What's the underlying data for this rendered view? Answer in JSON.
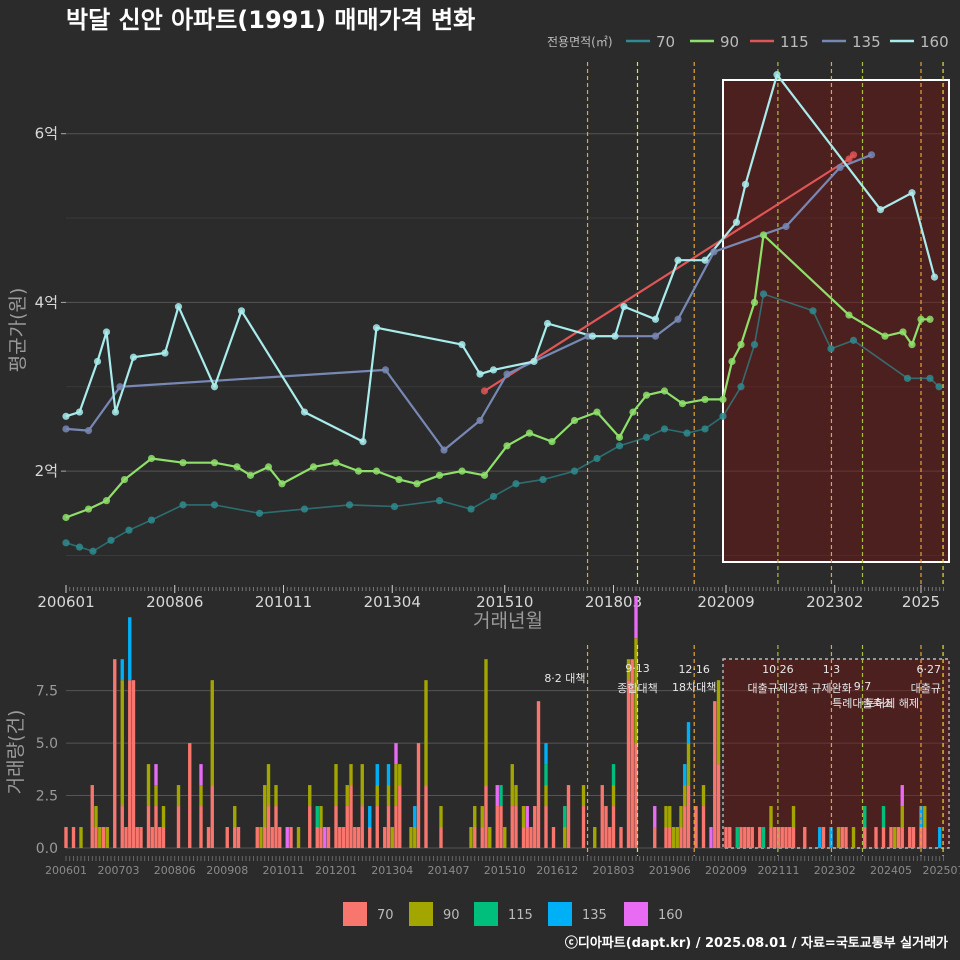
{
  "title": "박달 신안 아파트(1991) 매매가격 변화",
  "credit": "ⓒ디아파트(dapt.kr) / 2025.08.01 / 자료=국토교통부 실거래가",
  "colors": {
    "70": "#2e8b8f",
    "90": "#8ee06a",
    "115": "#e05555",
    "135": "#7888b4",
    "160": "#a8ecec",
    "bar70": "#f8766d",
    "bar90": "#a3a500",
    "bar115": "#00bf7d",
    "bar135": "#00b0f6",
    "bar160": "#e76bf3"
  },
  "chart_data": [
    {
      "type": "line",
      "ylabel": "평균가(원)",
      "xlabel": "거래년월",
      "x_ticks": [
        "200601",
        "200806",
        "201011",
        "201304",
        "201510",
        "201803",
        "202009",
        "202302",
        "2025"
      ],
      "y_ticks": [
        {
          "value": 2,
          "label": "2억"
        },
        {
          "value": 4,
          "label": "4억"
        },
        {
          "value": 6,
          "label": "6억"
        }
      ],
      "ylim": [
        0.65,
        6.85
      ],
      "legend_title": "전용면적(㎡)",
      "series": [
        {
          "name": "70",
          "values": [
            [
              2006.0,
              1.15
            ],
            [
              2006.3,
              1.1
            ],
            [
              2006.6,
              1.05
            ],
            [
              2007.0,
              1.18
            ],
            [
              2007.4,
              1.3
            ],
            [
              2007.9,
              1.42
            ],
            [
              2008.6,
              1.6
            ],
            [
              2009.3,
              1.6
            ],
            [
              2010.3,
              1.5
            ],
            [
              2011.3,
              1.55
            ],
            [
              2012.3,
              1.6
            ],
            [
              2013.3,
              1.58
            ],
            [
              2014.3,
              1.65
            ],
            [
              2015.0,
              1.55
            ],
            [
              2015.5,
              1.7
            ],
            [
              2016.0,
              1.85
            ],
            [
              2016.6,
              1.9
            ],
            [
              2017.3,
              2.0
            ],
            [
              2017.8,
              2.15
            ],
            [
              2018.3,
              2.3
            ],
            [
              2018.9,
              2.4
            ],
            [
              2019.3,
              2.5
            ],
            [
              2019.8,
              2.45
            ],
            [
              2020.2,
              2.5
            ],
            [
              2020.6,
              2.65
            ],
            [
              2021.0,
              3.0
            ],
            [
              2021.3,
              3.5
            ],
            [
              2021.5,
              4.1
            ],
            [
              2022.6,
              3.9
            ],
            [
              2023.0,
              3.45
            ],
            [
              2023.5,
              3.55
            ],
            [
              2024.7,
              3.1
            ],
            [
              2025.2,
              3.1
            ],
            [
              2025.4,
              3.0
            ]
          ]
        },
        {
          "name": "90",
          "values": [
            [
              2006.0,
              1.45
            ],
            [
              2006.5,
              1.55
            ],
            [
              2006.9,
              1.65
            ],
            [
              2007.3,
              1.9
            ],
            [
              2007.9,
              2.15
            ],
            [
              2008.6,
              2.1
            ],
            [
              2009.3,
              2.1
            ],
            [
              2009.8,
              2.05
            ],
            [
              2010.1,
              1.95
            ],
            [
              2010.5,
              2.05
            ],
            [
              2010.8,
              1.85
            ],
            [
              2011.5,
              2.05
            ],
            [
              2012.0,
              2.1
            ],
            [
              2012.5,
              2.0
            ],
            [
              2012.9,
              2.0
            ],
            [
              2013.4,
              1.9
            ],
            [
              2013.8,
              1.85
            ],
            [
              2014.3,
              1.95
            ],
            [
              2014.8,
              2.0
            ],
            [
              2015.3,
              1.95
            ],
            [
              2015.8,
              2.3
            ],
            [
              2016.3,
              2.45
            ],
            [
              2016.8,
              2.35
            ],
            [
              2017.3,
              2.6
            ],
            [
              2017.8,
              2.7
            ],
            [
              2018.3,
              2.4
            ],
            [
              2018.6,
              2.7
            ],
            [
              2018.9,
              2.9
            ],
            [
              2019.3,
              2.95
            ],
            [
              2019.7,
              2.8
            ],
            [
              2020.2,
              2.85
            ],
            [
              2020.6,
              2.85
            ],
            [
              2020.8,
              3.3
            ],
            [
              2021.0,
              3.5
            ],
            [
              2021.3,
              4.0
            ],
            [
              2021.5,
              4.8
            ],
            [
              2023.4,
              3.85
            ],
            [
              2024.2,
              3.6
            ],
            [
              2024.6,
              3.65
            ],
            [
              2024.8,
              3.5
            ],
            [
              2025.0,
              3.8
            ],
            [
              2025.2,
              3.8
            ]
          ]
        },
        {
          "name": "115",
          "values": [
            [
              2015.3,
              2.95
            ],
            [
              2023.4,
              5.7
            ],
            [
              2023.5,
              5.75
            ]
          ]
        },
        {
          "name": "135",
          "values": [
            [
              2006.0,
              2.5
            ],
            [
              2006.5,
              2.48
            ],
            [
              2007.2,
              3.0
            ],
            [
              2013.1,
              3.2
            ],
            [
              2014.4,
              2.25
            ],
            [
              2015.2,
              2.6
            ],
            [
              2015.8,
              3.15
            ],
            [
              2017.6,
              3.6
            ],
            [
              2019.1,
              3.6
            ],
            [
              2019.6,
              3.8
            ],
            [
              2020.4,
              4.6
            ],
            [
              2022.0,
              4.9
            ],
            [
              2023.2,
              5.6
            ],
            [
              2023.9,
              5.75
            ]
          ]
        },
        {
          "name": "160",
          "values": [
            [
              2006.0,
              2.65
            ],
            [
              2006.3,
              2.7
            ],
            [
              2006.7,
              3.3
            ],
            [
              2006.9,
              3.65
            ],
            [
              2007.1,
              2.7
            ],
            [
              2007.5,
              3.35
            ],
            [
              2008.2,
              3.4
            ],
            [
              2008.5,
              3.95
            ],
            [
              2009.3,
              3.0
            ],
            [
              2009.9,
              3.9
            ],
            [
              2011.3,
              2.7
            ],
            [
              2012.6,
              2.35
            ],
            [
              2012.9,
              3.7
            ],
            [
              2014.8,
              3.5
            ],
            [
              2015.2,
              3.15
            ],
            [
              2015.5,
              3.2
            ],
            [
              2016.4,
              3.3
            ],
            [
              2016.7,
              3.75
            ],
            [
              2017.7,
              3.6
            ],
            [
              2018.2,
              3.6
            ],
            [
              2018.4,
              3.95
            ],
            [
              2019.1,
              3.8
            ],
            [
              2019.6,
              4.5
            ],
            [
              2020.2,
              4.5
            ],
            [
              2020.9,
              4.95
            ],
            [
              2021.1,
              5.4
            ],
            [
              2021.8,
              6.7
            ],
            [
              2024.1,
              5.1
            ],
            [
              2024.8,
              5.3
            ],
            [
              2025.3,
              4.3
            ]
          ]
        }
      ]
    },
    {
      "type": "bar",
      "ylabel": "거래량(건)",
      "x_ticks": [
        "200601",
        "200703",
        "200806",
        "200908",
        "201011",
        "201201",
        "201304",
        "201407",
        "201510",
        "201612",
        "201803",
        "201906",
        "202009",
        "202111",
        "202302",
        "202405",
        "202507"
      ],
      "y_ticks": [
        {
          "value": 0,
          "label": "0.0"
        },
        {
          "value": 2.5,
          "label": "2.5"
        },
        {
          "value": 5,
          "label": "5.0"
        },
        {
          "value": 7.5,
          "label": "7.5"
        }
      ],
      "ylim": [
        0,
        9.2
      ],
      "series_names": [
        "70",
        "90",
        "115",
        "135",
        "160"
      ]
    }
  ],
  "policies": [
    {
      "x": 2017.59,
      "color": "#e8a33a",
      "label1": "8·2 대책",
      "label2": ""
    },
    {
      "x": 2018.7,
      "color": "#e8e040",
      "label1": "9·13",
      "label2": "종합대책"
    },
    {
      "x": 2019.96,
      "color": "#e8a33a",
      "label1": "12·16",
      "label2": "18차대책"
    },
    {
      "x": 2021.82,
      "color": "#a8c040",
      "label1": "10·26",
      "label2": "대출규제강화"
    },
    {
      "x": 2023.01,
      "color": "#e8a33a",
      "label1": "1·3",
      "label2": "규제완화"
    },
    {
      "x": 2023.7,
      "color": "#a8c040",
      "label1": "9·7",
      "label2": "특례대출축소"
    },
    {
      "x": 2025.0,
      "color": "#e8a33a",
      "label1": "",
      "label2": "토허제 해제"
    },
    {
      "x": 2025.49,
      "color": "#e8e040",
      "label1": "6·27",
      "label2": "대출규"
    }
  ],
  "highlight": {
    "start": 2020.6,
    "end": 2025.6
  }
}
